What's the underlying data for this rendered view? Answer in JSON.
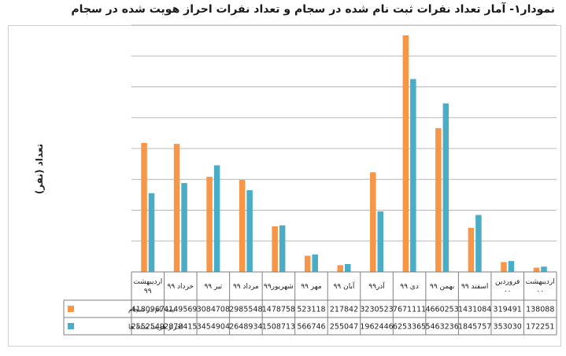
{
  "chart_data": {
    "type": "bar",
    "title": "نمودار۱- آمار تعداد نفرات ثبت نام شده در سجام و تعداد نفرات احراز هویت شده در سجام",
    "ylabel": "تعداد (نفر)",
    "xlabel": "",
    "ylim": [
      0,
      8000000
    ],
    "grid": true,
    "legend": "data-table",
    "categories": [
      "اردیبهشت ۹۹",
      "خرداد ۹۹",
      "تیر ۹۹",
      "مرداد ۹۹",
      "شهریور۹۹",
      "مهر ۹۹",
      "آبان ۹۹",
      "آذر۹۹",
      "دی ۹۹",
      "بهمن ۹۹",
      "اسفند ۹۹",
      "فروردین ۰۰",
      "اردیبهشت ۰۰"
    ],
    "series": [
      {
        "name": "ثبت نام در سجام",
        "color": "#F79646",
        "values": [
          4180967,
          4149569,
          3084708,
          2985548,
          1478758,
          523118,
          217842,
          3230523,
          7671111,
          4660253,
          1431084,
          319491,
          138088
        ]
      },
      {
        "name": "احراز هویت شده ها",
        "color": "#4BACC6",
        "values": [
          2552549,
          2878415,
          3454904,
          2648934,
          1508713,
          566746,
          255047,
          1962446,
          6253365,
          5463236,
          1845757,
          353030,
          172251
        ]
      }
    ]
  }
}
